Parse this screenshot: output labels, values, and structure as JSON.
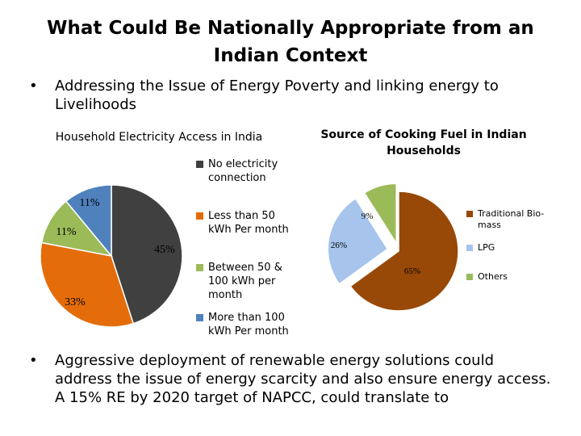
{
  "slide": {
    "title": "What Could Be Nationally Appropriate from an Indian Context",
    "bullets": [
      "Addressing the Issue of Energy Poverty and linking energy to Livelihoods",
      "Aggressive deployment of renewable energy solutions could address the issue of energy scarcity and also ensure energy access. A 15% RE by 2020 target of NAPCC, could translate to"
    ],
    "bullet_char": "•"
  },
  "chart_data": [
    {
      "type": "pie",
      "title": "Household Electricity Access in India",
      "categories": [
        "No electricity connection",
        "Less than 50 kWh Per month",
        "Between 50 & 100 kWh per month",
        "More than 100 kWh Per month"
      ],
      "values": [
        45,
        33,
        11,
        11
      ],
      "data_labels": [
        "45%",
        "33%",
        "11%",
        "11%"
      ],
      "colors": [
        "#404040",
        "#e46c0a",
        "#9bbb59",
        "#4f81bd"
      ],
      "legend_labels": [
        "No electricity connection",
        "Less than 50 kWh Per month",
        "Between 50 & 100 kWh per month",
        "More than 100 kWh Per month"
      ],
      "legend": "right"
    },
    {
      "type": "pie",
      "title": "Source of Cooking Fuel in Indian Households",
      "categories": [
        "Traditional Bio-mass",
        "LPG",
        "Others"
      ],
      "values": [
        65,
        26,
        9
      ],
      "data_labels": [
        "65%",
        "26%",
        "9%"
      ],
      "colors": [
        "#984807",
        "#a6c4ec",
        "#9bbb59"
      ],
      "legend_labels": [
        "Traditional Bio-mass",
        "LPG",
        "Others"
      ],
      "legend": "right",
      "exploded": true
    }
  ]
}
